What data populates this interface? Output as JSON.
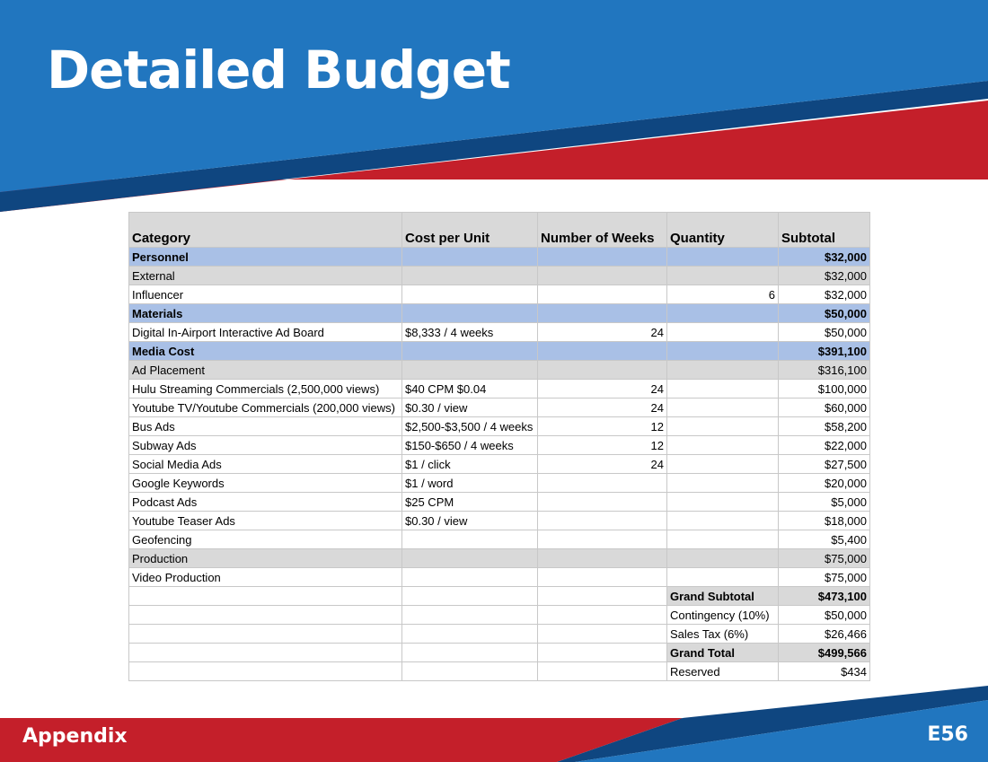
{
  "header": {
    "title": "Detailed Budget"
  },
  "footer": {
    "section": "Appendix",
    "page": "E56"
  },
  "colors": {
    "blue": "#2176bf",
    "dark_blue": "#0f4680",
    "red": "#c41f2a",
    "section_fill": "#a9c0e6",
    "subsection_fill": "#d9d9d9"
  },
  "table": {
    "headers": [
      "Category",
      "Cost per Unit",
      "Number of Weeks",
      "Quantity",
      "Subtotal"
    ],
    "rows": [
      {
        "category": "Personnel",
        "subtotal": "$32,000"
      },
      {
        "category": "External",
        "subtotal": "$32,000"
      },
      {
        "category": "Influencer",
        "quantity": "6",
        "subtotal": "$32,000"
      },
      {
        "category": "Materials",
        "subtotal": "$50,000"
      },
      {
        "category": "Digital In-Airport Interactive Ad Board",
        "cost": "$8,333 / 4 weeks",
        "weeks": "24",
        "subtotal": "$50,000"
      },
      {
        "category": "Media Cost",
        "subtotal": "$391,100"
      },
      {
        "category": "Ad Placement",
        "subtotal": "$316,100"
      },
      {
        "category": "Hulu Streaming Commercials (2,500,000 views)",
        "cost": "$40 CPM $0.04",
        "weeks": "24",
        "subtotal": "$100,000"
      },
      {
        "category": "Youtube TV/Youtube Commercials (200,000 views)",
        "cost": "$0.30 / view",
        "weeks": "24",
        "subtotal": "$60,000"
      },
      {
        "category": "Bus Ads",
        "cost": "$2,500-$3,500 / 4 weeks",
        "weeks": "12",
        "subtotal": "$58,200"
      },
      {
        "category": "Subway Ads",
        "cost": "$150-$650 / 4 weeks",
        "weeks": "12",
        "subtotal": "$22,000"
      },
      {
        "category": "Social Media Ads",
        "cost": "$1 / click",
        "weeks": "24",
        "subtotal": "$27,500"
      },
      {
        "category": "Google Keywords",
        "cost": "$1 / word",
        "subtotal": "$20,000"
      },
      {
        "category": "Podcast Ads",
        "cost": "$25 CPM",
        "subtotal": "$5,000"
      },
      {
        "category": "Youtube Teaser Ads",
        "cost": "$0.30 / view",
        "subtotal": "$18,000"
      },
      {
        "category": "Geofencing",
        "subtotal": "$5,400"
      },
      {
        "category": "Production",
        "subtotal": "$75,000"
      },
      {
        "category": "Video Production",
        "subtotal": "$75,000"
      }
    ],
    "summary": [
      {
        "label": "Grand Subtotal",
        "value": "$473,100"
      },
      {
        "label": "Contingency (10%)",
        "value": "$50,000"
      },
      {
        "label": "Sales Tax (6%)",
        "value": "$26,466"
      },
      {
        "label": "Grand Total",
        "value": "$499,566"
      },
      {
        "label": "Reserved",
        "value": "$434"
      }
    ]
  }
}
